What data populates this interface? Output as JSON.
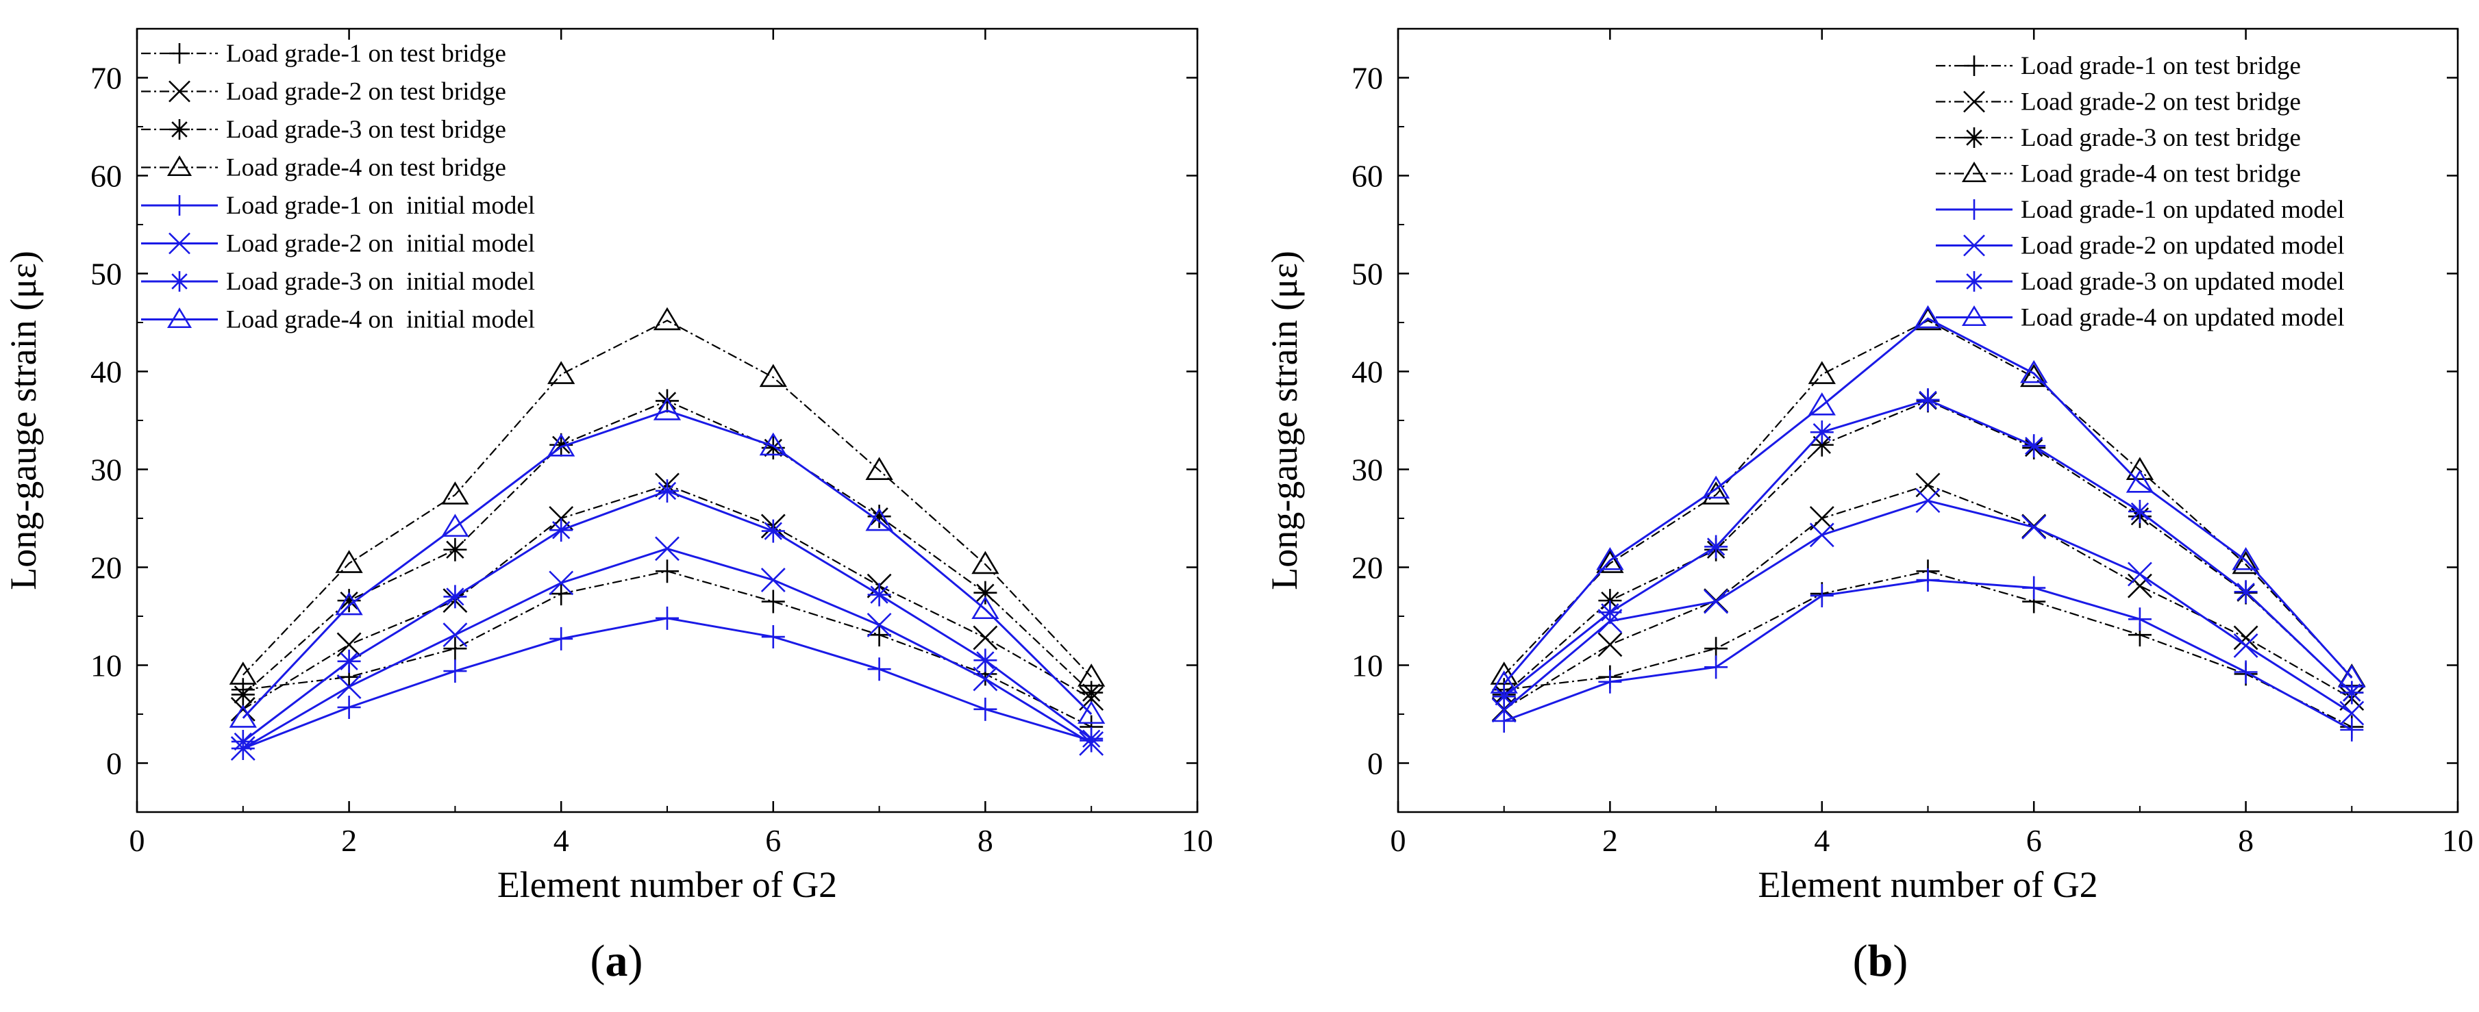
{
  "chart_data": [
    {
      "type": "line",
      "panel_label": "a",
      "title": "",
      "xlabel": "Element number of G2",
      "ylabel": "Long-gauge strain (με)",
      "xlim": [
        0,
        10
      ],
      "ylim": [
        -5,
        75
      ],
      "xticks": [
        0,
        2,
        4,
        6,
        8,
        10
      ],
      "yticks": [
        0,
        10,
        20,
        30,
        40,
        50,
        60,
        70
      ],
      "grid": false,
      "legend_position": "top-left",
      "x": [
        1,
        2,
        3,
        4,
        5,
        6,
        7,
        8,
        9
      ],
      "series": [
        {
          "name": "Load grade-1 on test bridge",
          "color": "#000000",
          "dash": "dashdot",
          "marker": "plus",
          "values": [
            7.5,
            8.8,
            11.7,
            17.3,
            19.6,
            16.5,
            13.1,
            9.1,
            3.7
          ]
        },
        {
          "name": "Load grade-2 on test bridge",
          "color": "#000000",
          "dash": "dashdot",
          "marker": "x",
          "values": [
            5.5,
            12.1,
            16.6,
            25.0,
            28.4,
            24.2,
            18.1,
            12.8,
            6.6
          ]
        },
        {
          "name": "Load grade-3 on test bridge",
          "color": "#000000",
          "dash": "dashdot",
          "marker": "star",
          "values": [
            7.0,
            16.6,
            21.8,
            32.5,
            37.0,
            32.2,
            25.2,
            17.4,
            7.2
          ]
        },
        {
          "name": "Load grade-4 on test bridge",
          "color": "#000000",
          "dash": "dashdot",
          "marker": "triangle",
          "values": [
            9.0,
            20.4,
            27.4,
            39.7,
            45.2,
            39.4,
            29.9,
            20.3,
            8.8
          ]
        },
        {
          "name": "Load grade-1 on  initial model",
          "color": "#1a1ae6",
          "dash": "solid",
          "marker": "plus",
          "values": [
            1.5,
            5.7,
            9.4,
            12.7,
            14.8,
            12.9,
            9.6,
            5.5,
            2.3
          ]
        },
        {
          "name": "Load grade-2 on  initial model",
          "color": "#1a1ae6",
          "dash": "solid",
          "marker": "x",
          "values": [
            1.5,
            7.8,
            13.1,
            18.4,
            21.9,
            18.7,
            14.1,
            8.6,
            2.0
          ]
        },
        {
          "name": "Load grade-3 on  initial model",
          "color": "#1a1ae6",
          "dash": "solid",
          "marker": "star",
          "values": [
            2.2,
            10.4,
            17.0,
            23.8,
            27.8,
            23.7,
            17.2,
            10.5,
            2.5
          ]
        },
        {
          "name": "Load grade-4 on  initial model",
          "color": "#1a1ae6",
          "dash": "solid",
          "marker": "triangle",
          "values": [
            4.6,
            16.1,
            24.1,
            32.3,
            36.0,
            32.4,
            24.7,
            15.7,
            5.0
          ]
        }
      ]
    },
    {
      "type": "line",
      "panel_label": "b",
      "title": "",
      "xlabel": "Element number of G2",
      "ylabel": "Long-gauge strain (με)",
      "xlim": [
        0,
        10
      ],
      "ylim": [
        -5,
        75
      ],
      "xticks": [
        0,
        2,
        4,
        6,
        8,
        10
      ],
      "yticks": [
        0,
        10,
        20,
        30,
        40,
        50,
        60,
        70
      ],
      "grid": false,
      "legend_position": "top-right",
      "x": [
        1,
        2,
        3,
        4,
        5,
        6,
        7,
        8,
        9
      ],
      "series": [
        {
          "name": "Load grade-1 on test bridge",
          "color": "#000000",
          "dash": "dashdot",
          "marker": "plus",
          "values": [
            7.5,
            8.8,
            11.7,
            17.3,
            19.6,
            16.5,
            13.1,
            9.1,
            3.7
          ]
        },
        {
          "name": "Load grade-2 on test bridge",
          "color": "#000000",
          "dash": "dashdot",
          "marker": "x",
          "values": [
            5.5,
            12.1,
            16.6,
            25.0,
            28.4,
            24.2,
            18.1,
            12.8,
            6.6
          ]
        },
        {
          "name": "Load grade-3 on test bridge",
          "color": "#000000",
          "dash": "dashdot",
          "marker": "star",
          "values": [
            7.0,
            16.6,
            21.8,
            32.5,
            37.0,
            32.2,
            25.2,
            17.4,
            7.2
          ]
        },
        {
          "name": "Load grade-4 on test bridge",
          "color": "#000000",
          "dash": "dashdot",
          "marker": "triangle",
          "values": [
            9.0,
            20.4,
            27.4,
            39.7,
            45.2,
            39.4,
            29.9,
            20.3,
            8.8
          ]
        },
        {
          "name": "Load grade-1 on updated model",
          "color": "#1a1ae6",
          "dash": "solid",
          "marker": "plus",
          "values": [
            4.3,
            8.3,
            9.8,
            17.1,
            18.7,
            17.9,
            14.7,
            9.3,
            3.4
          ]
        },
        {
          "name": "Load grade-2 on updated model",
          "color": "#1a1ae6",
          "dash": "solid",
          "marker": "x",
          "values": [
            5.4,
            14.5,
            16.5,
            23.3,
            26.8,
            24.1,
            19.3,
            12.0,
            5.1
          ]
        },
        {
          "name": "Load grade-3 on updated model",
          "color": "#1a1ae6",
          "dash": "solid",
          "marker": "star",
          "values": [
            6.8,
            15.4,
            22.1,
            33.8,
            37.1,
            32.4,
            25.7,
            17.5,
            7.2
          ]
        },
        {
          "name": "Load grade-4 on updated model",
          "color": "#1a1ae6",
          "dash": "solid",
          "marker": "triangle",
          "values": [
            8.1,
            20.7,
            28.0,
            36.5,
            45.4,
            39.8,
            28.6,
            20.7,
            8.7
          ]
        }
      ]
    }
  ]
}
